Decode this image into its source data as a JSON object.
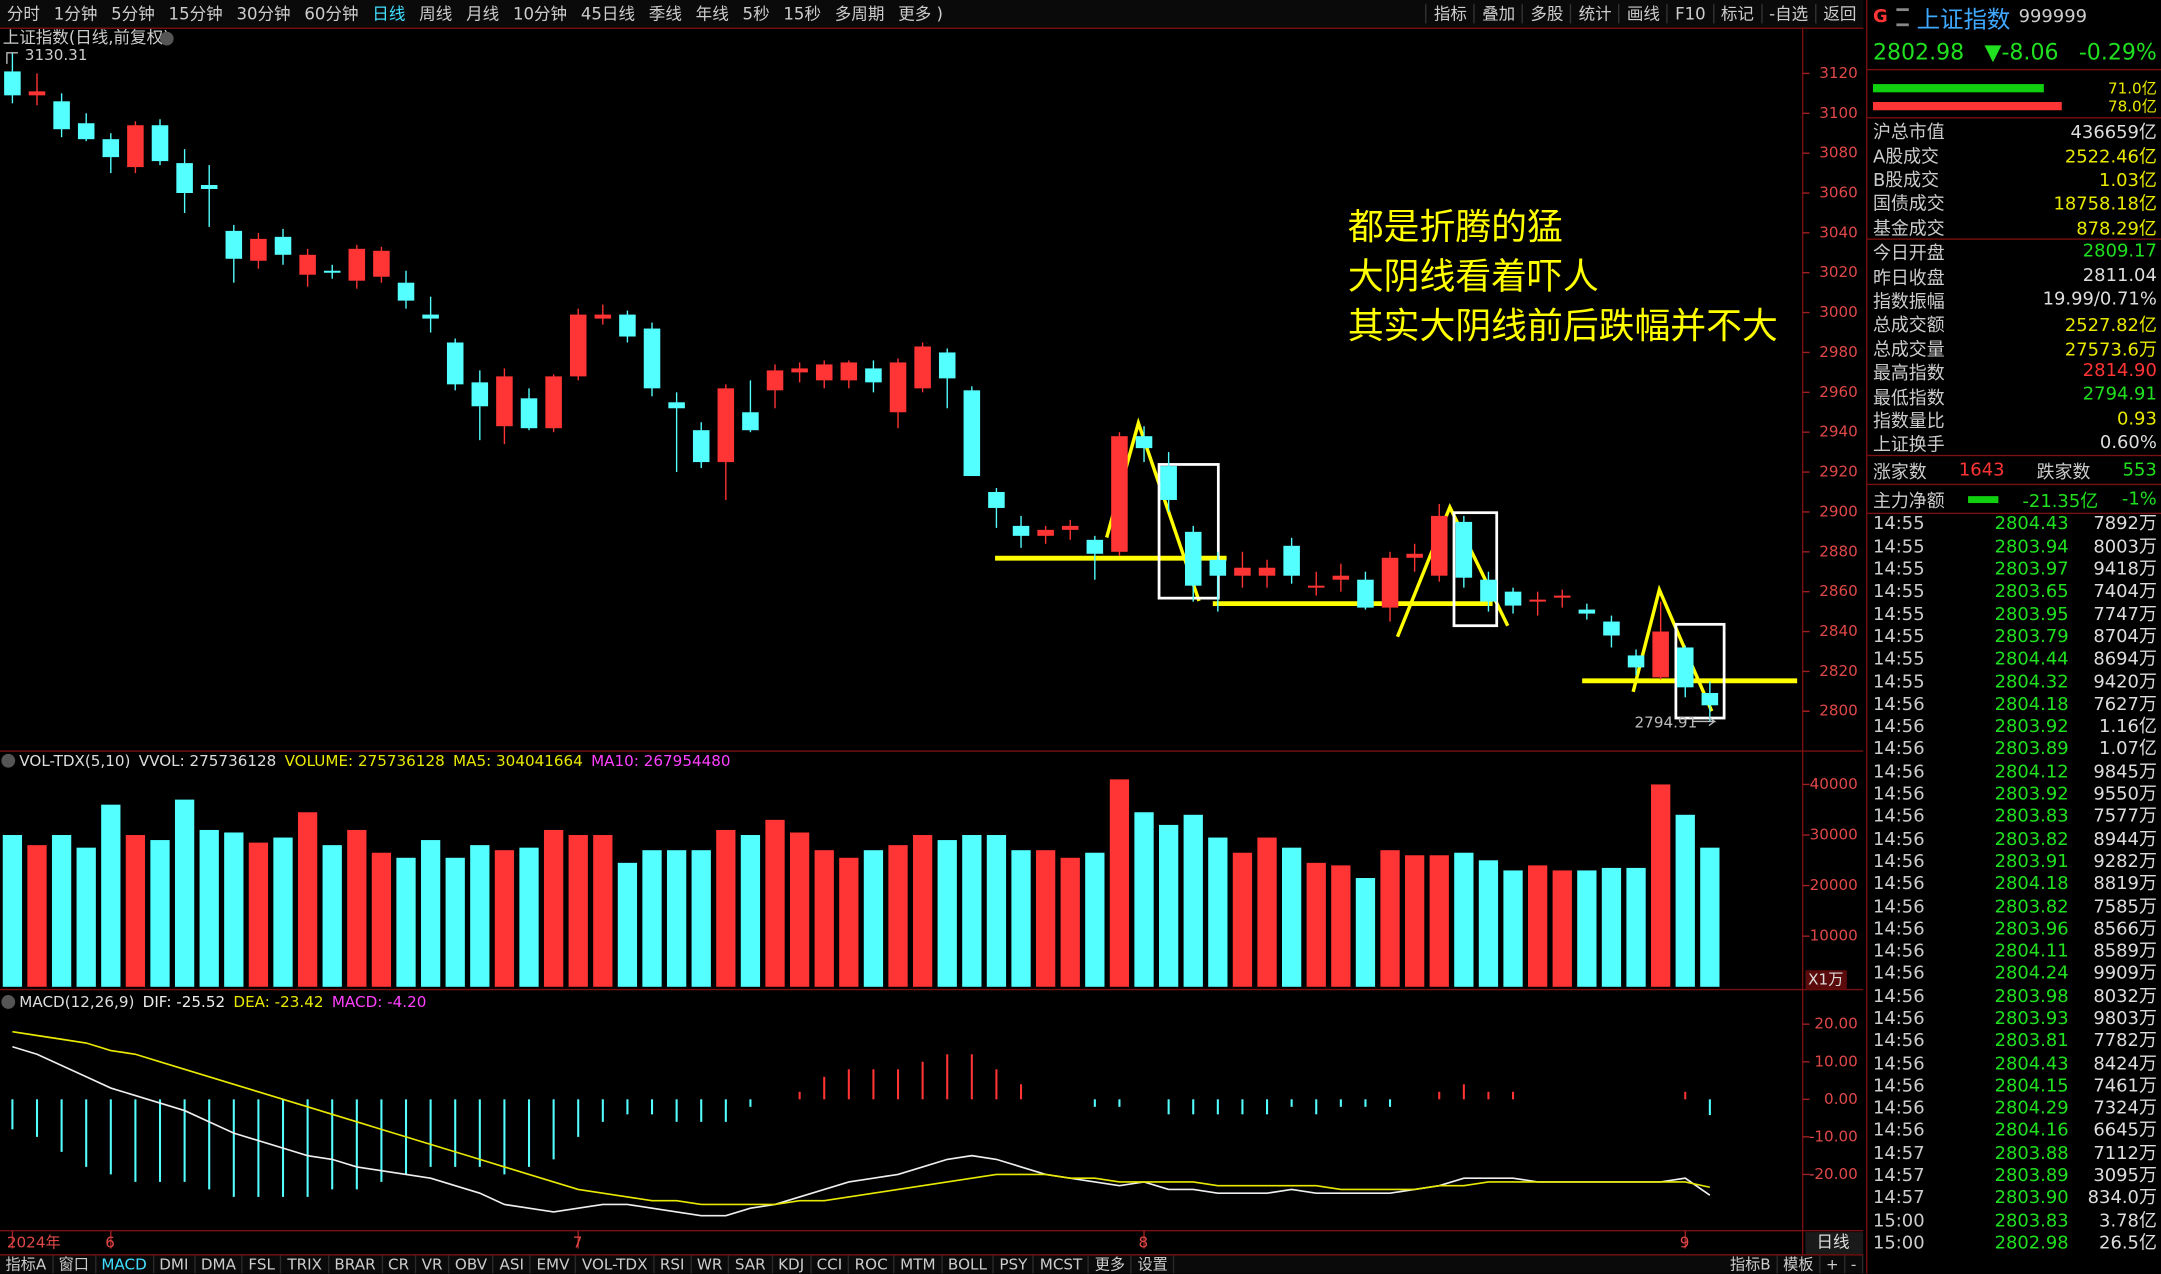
{
  "toolbar": {
    "periods": [
      "分时",
      "1分钟",
      "5分钟",
      "15分钟",
      "30分钟",
      "60分钟",
      "日线",
      "周线",
      "月线",
      "10分钟",
      "45日线",
      "季线",
      "年线",
      "5秒",
      "15秒",
      "多周期",
      "更多 )"
    ],
    "active_period": "日线",
    "tools": [
      "指标",
      "叠加",
      "多股",
      "统计",
      "画线",
      "F10",
      "标记",
      "-自选",
      "返回"
    ]
  },
  "chart": {
    "title": "上证指数(日线,前复权)",
    "high_label": 3130.31,
    "low_label": 2794.91,
    "period_label": "日线",
    "annotations": [
      "都是折腾的猛",
      "大阴线看着吓人",
      "其实大阴线前后跌幅并不大"
    ],
    "up_color": "#ff3434",
    "down_color": "#54ffff",
    "ylim": [
      2780,
      3143
    ],
    "yticks": [
      2800,
      2820,
      2840,
      2860,
      2880,
      2900,
      2920,
      2940,
      2960,
      2980,
      3000,
      3020,
      3040,
      3060,
      3080,
      3100,
      3120
    ],
    "x_labels": [
      {
        "candle": 0,
        "label": "2024年"
      },
      {
        "candle": 4,
        "label": "6"
      },
      {
        "candle": 23,
        "label": "7"
      },
      {
        "candle": 46,
        "label": "8"
      },
      {
        "candle": 68,
        "label": "9"
      }
    ],
    "candles": [
      [
        3121,
        3130.31,
        3105,
        3109
      ],
      [
        3109,
        3120,
        3104,
        3111
      ],
      [
        3106,
        3110,
        3088,
        3092
      ],
      [
        3095,
        3100,
        3086,
        3087
      ],
      [
        3087,
        3090,
        3070,
        3078
      ],
      [
        3073,
        3096,
        3070,
        3094
      ],
      [
        3094,
        3097,
        3074,
        3076
      ],
      [
        3075,
        3082,
        3050,
        3060
      ],
      [
        3064,
        3074,
        3043,
        3062
      ],
      [
        3041,
        3044,
        3015,
        3027
      ],
      [
        3026,
        3040,
        3022,
        3037
      ],
      [
        3038,
        3042,
        3024,
        3029
      ],
      [
        3019,
        3032,
        3013,
        3029
      ],
      [
        3021,
        3024,
        3017,
        3020
      ],
      [
        3016,
        3034,
        3012,
        3032
      ],
      [
        3018,
        3033,
        3015,
        3031
      ],
      [
        3015,
        3021,
        3002,
        3006
      ],
      [
        2999,
        3008,
        2990,
        2997
      ],
      [
        2985,
        2987,
        2961,
        2964
      ],
      [
        2965,
        2971,
        2936,
        2953
      ],
      [
        2943,
        2972,
        2934,
        2968
      ],
      [
        2957,
        2962,
        2941,
        2942
      ],
      [
        2942,
        2969,
        2940,
        2968
      ],
      [
        2968,
        3002,
        2966,
        2999
      ],
      [
        2997,
        3004,
        2994,
        2999
      ],
      [
        2999,
        3001,
        2985,
        2988
      ],
      [
        2992,
        2995,
        2958,
        2962
      ],
      [
        2955,
        2960,
        2920,
        2952
      ],
      [
        2941,
        2945,
        2922,
        2925
      ],
      [
        2925,
        2964,
        2906,
        2962
      ],
      [
        2950,
        2966,
        2940,
        2941
      ],
      [
        2961,
        2974,
        2952,
        2971
      ],
      [
        2970,
        2975,
        2965,
        2972
      ],
      [
        2966,
        2976,
        2962,
        2974
      ],
      [
        2966,
        2976,
        2962,
        2975
      ],
      [
        2972,
        2976,
        2960,
        2965
      ],
      [
        2950,
        2977,
        2942,
        2975
      ],
      [
        2962,
        2985,
        2960,
        2983
      ],
      [
        2980,
        2982,
        2952,
        2967
      ],
      [
        2961,
        2963,
        2918,
        2918
      ],
      [
        2910,
        2912,
        2892,
        2902
      ],
      [
        2893,
        2898,
        2882,
        2888
      ],
      [
        2888,
        2893,
        2884,
        2891
      ],
      [
        2891,
        2896,
        2886,
        2893
      ],
      [
        2886,
        2888,
        2866,
        2879
      ],
      [
        2880,
        2940,
        2878,
        2938
      ],
      [
        2938,
        2943,
        2925,
        2932
      ],
      [
        2923,
        2930,
        2900,
        2906
      ],
      [
        2890,
        2893,
        2855,
        2863
      ],
      [
        2876,
        2880,
        2850,
        2868
      ],
      [
        2868,
        2880,
        2862,
        2872
      ],
      [
        2868,
        2876,
        2862,
        2872
      ],
      [
        2883,
        2887,
        2864,
        2868
      ],
      [
        2862,
        2870,
        2858,
        2863
      ],
      [
        2866,
        2874,
        2860,
        2868
      ],
      [
        2866,
        2870,
        2851,
        2852
      ],
      [
        2852,
        2880,
        2845,
        2877
      ],
      [
        2877,
        2884,
        2870,
        2879
      ],
      [
        2868,
        2904,
        2865,
        2898
      ],
      [
        2895,
        2898,
        2862,
        2867
      ],
      [
        2866,
        2870,
        2850,
        2855
      ],
      [
        2860,
        2862,
        2849,
        2853
      ],
      [
        2855,
        2860,
        2848,
        2856
      ],
      [
        2857,
        2861,
        2852,
        2858
      ],
      [
        2851,
        2854,
        2846,
        2849
      ],
      [
        2845,
        2848,
        2832,
        2838
      ],
      [
        2828,
        2831,
        2818,
        2822
      ],
      [
        2817,
        2855,
        2816,
        2840
      ],
      [
        2832,
        2833,
        2807,
        2812
      ],
      [
        2809.17,
        2814.9,
        2794.91,
        2802.98
      ]
    ]
  },
  "volume": {
    "name": "VOL-TDX(5,10)",
    "fields": [
      {
        "text": "VVOL: 275736128",
        "color": "#dddddd"
      },
      {
        "text": "VOLUME: 275736128",
        "color": "#e8e800"
      },
      {
        "text": "MA5: 304041664",
        "color": "#e8e800"
      },
      {
        "text": "MA10: 267954480",
        "color": "#ff40ff"
      }
    ],
    "unit": "X1万",
    "ylim": [
      0,
      42500
    ],
    "yticks": [
      10000,
      20000,
      30000,
      40000
    ],
    "values": [
      30000,
      28000,
      30000,
      27500,
      36000,
      30000,
      29000,
      37000,
      31000,
      30500,
      28500,
      29500,
      34500,
      28000,
      31000,
      26500,
      25500,
      29000,
      25500,
      28000,
      27000,
      27500,
      31000,
      30000,
      30000,
      24500,
      27000,
      27000,
      27000,
      31000,
      30000,
      33000,
      30500,
      27000,
      25500,
      27000,
      28000,
      30000,
      29000,
      30000,
      30000,
      27000,
      27000,
      25500,
      26500,
      41000,
      34500,
      32000,
      34000,
      29500,
      26500,
      29500,
      27500,
      24500,
      24000,
      21500,
      27000,
      26000,
      26000,
      26500,
      25000,
      23000,
      24000,
      23000,
      23000,
      23500,
      23500,
      40000,
      34000,
      27500
    ]
  },
  "macd": {
    "name": "MACD(12,26,9)",
    "fields": [
      {
        "text": "DIF: -25.52",
        "color": "#eeeeee"
      },
      {
        "text": "DEA: -23.42",
        "color": "#e8e800"
      },
      {
        "text": "MACD: -4.20",
        "color": "#ff40ff"
      }
    ],
    "ylim": [
      -35,
      23
    ],
    "yticks": [
      {
        "value": 20,
        "label": "20.00"
      },
      {
        "value": 10,
        "label": "10.00"
      },
      {
        "value": 0,
        "label": "0.00"
      },
      {
        "value": -10,
        "label": "-10.00"
      },
      {
        "value": -20,
        "label": "-20.00"
      }
    ],
    "dif_color": "#eeeeee",
    "dea_color": "#e8e800",
    "dif": [
      14,
      12,
      9,
      6,
      3,
      1,
      -1,
      -3,
      -6,
      -9,
      -11,
      -13,
      -15,
      -16,
      -18,
      -19,
      -20,
      -21,
      -23,
      -25,
      -28,
      -29,
      -30,
      -29,
      -28,
      -28,
      -29,
      -30,
      -31,
      -31,
      -29,
      -28,
      -26,
      -24,
      -22,
      -21,
      -20,
      -18,
      -16,
      -15,
      -16,
      -18,
      -20,
      -21,
      -22,
      -23,
      -22,
      -24,
      -24,
      -25,
      -25,
      -25,
      -24,
      -25,
      -25,
      -25,
      -25,
      -24,
      -23,
      -21,
      -21,
      -21,
      -22,
      -22,
      -22,
      -22,
      -22,
      -22,
      -21,
      -25.52
    ],
    "dea": [
      18,
      17,
      16,
      15,
      13,
      12,
      10,
      8,
      6,
      4,
      2,
      0,
      -2,
      -4,
      -6,
      -8,
      -10,
      -12,
      -14,
      -16,
      -18,
      -20,
      -22,
      -24,
      -25,
      -26,
      -27,
      -27,
      -28,
      -28,
      -28,
      -28,
      -27,
      -27,
      -26,
      -25,
      -24,
      -23,
      -22,
      -21,
      -20,
      -20,
      -20,
      -21,
      -21,
      -22,
      -22,
      -22,
      -22,
      -23,
      -23,
      -23,
      -23,
      -23,
      -24,
      -24,
      -24,
      -24,
      -23,
      -23,
      -22,
      -22,
      -22,
      -22,
      -22,
      -22,
      -22,
      -22,
      -22,
      -23.42
    ],
    "hist": [
      -8,
      -10,
      -14,
      -18,
      -20,
      -22,
      -22,
      -22,
      -24,
      -26,
      -26,
      -26,
      -26,
      -24,
      -24,
      -22,
      -20,
      -18,
      -18,
      -18,
      -20,
      -18,
      -16,
      -10,
      -6,
      -4,
      -4,
      -6,
      -6,
      -6,
      -2,
      0,
      2,
      6,
      8,
      8,
      8,
      10,
      12,
      12,
      8,
      4,
      0,
      0,
      -2,
      -2,
      0,
      -4,
      -4,
      -4,
      -4,
      -4,
      -2,
      -4,
      -2,
      -2,
      -2,
      0,
      2,
      4,
      2,
      2,
      0,
      0,
      0,
      0,
      0,
      0,
      2,
      -4.2
    ]
  },
  "side": {
    "badge": "G",
    "name": "上证指数",
    "code": "999999",
    "price": "2802.98",
    "change": "▼-8.06",
    "pct": "-0.29%",
    "bars": [
      {
        "value": 71.0,
        "label": "71.0亿",
        "color": "#10d010"
      },
      {
        "value": 78.0,
        "label": "78.0亿",
        "color": "#ff3434"
      }
    ],
    "stats": [
      {
        "label": "沪总市值",
        "value": "436659亿",
        "color": "#dddddd"
      },
      {
        "label": "A股成交",
        "value": "2522.46亿",
        "color": "#e8e800"
      },
      {
        "label": "B股成交",
        "value": "1.03亿",
        "color": "#e8e800"
      },
      {
        "label": "国债成交",
        "value": "18758.18亿",
        "color": "#e8e800"
      },
      {
        "label": "基金成交",
        "value": "878.29亿",
        "color": "#e8e800"
      },
      {
        "label": "今日开盘",
        "value": "2809.17",
        "color": "#20e020"
      },
      {
        "label": "昨日收盘",
        "value": "2811.04",
        "color": "#dddddd"
      },
      {
        "label": "指数振幅",
        "value": "19.99/0.71%",
        "color": "#dddddd"
      },
      {
        "label": "总成交额",
        "value": "2527.82亿",
        "color": "#e8e800"
      },
      {
        "label": "总成交量",
        "value": "27573.6万",
        "color": "#e8e800"
      },
      {
        "label": "最高指数",
        "value": "2814.90",
        "color": "#ff3434"
      },
      {
        "label": "最低指数",
        "value": "2794.91",
        "color": "#20e020"
      },
      {
        "label": "指数量比",
        "value": "0.93",
        "color": "#e8e800"
      },
      {
        "label": "上证换手",
        "value": "0.60%",
        "color": "#dddddd"
      }
    ],
    "breadth": {
      "up_label": "涨家数",
      "up": "1643",
      "down_label": "跌家数",
      "down": "553"
    },
    "flow": {
      "label": "主力净额",
      "value": "-21.35亿",
      "pct": "-1%"
    },
    "ticks": [
      [
        "14:55",
        "2804.43",
        "7892万"
      ],
      [
        "14:55",
        "2803.94",
        "8003万"
      ],
      [
        "14:55",
        "2803.97",
        "9418万"
      ],
      [
        "14:55",
        "2803.65",
        "7404万"
      ],
      [
        "14:55",
        "2803.95",
        "7747万"
      ],
      [
        "14:55",
        "2803.79",
        "8704万"
      ],
      [
        "14:55",
        "2804.44",
        "8694万"
      ],
      [
        "14:55",
        "2804.32",
        "9420万"
      ],
      [
        "14:56",
        "2804.18",
        "7627万"
      ],
      [
        "14:56",
        "2803.92",
        "1.16亿"
      ],
      [
        "14:56",
        "2803.89",
        "1.07亿"
      ],
      [
        "14:56",
        "2804.12",
        "9845万"
      ],
      [
        "14:56",
        "2803.92",
        "9550万"
      ],
      [
        "14:56",
        "2803.83",
        "7577万"
      ],
      [
        "14:56",
        "2803.82",
        "8944万"
      ],
      [
        "14:56",
        "2803.91",
        "9282万"
      ],
      [
        "14:56",
        "2804.18",
        "8819万"
      ],
      [
        "14:56",
        "2803.82",
        "7585万"
      ],
      [
        "14:56",
        "2803.96",
        "8566万"
      ],
      [
        "14:56",
        "2804.11",
        "8589万"
      ],
      [
        "14:56",
        "2804.24",
        "9909万"
      ],
      [
        "14:56",
        "2803.98",
        "8032万"
      ],
      [
        "14:56",
        "2803.93",
        "9803万"
      ],
      [
        "14:56",
        "2803.81",
        "7782万"
      ],
      [
        "14:56",
        "2804.43",
        "8424万"
      ],
      [
        "14:56",
        "2804.15",
        "7461万"
      ],
      [
        "14:56",
        "2804.29",
        "7324万"
      ],
      [
        "14:56",
        "2804.16",
        "6645万"
      ],
      [
        "14:57",
        "2803.88",
        "7112万"
      ],
      [
        "14:57",
        "2803.89",
        "3095万"
      ],
      [
        "14:57",
        "2803.90",
        "834.0万"
      ],
      [
        "15:00",
        "2803.83",
        "3.78亿"
      ],
      [
        "15:00",
        "2802.98",
        "26.5亿"
      ]
    ]
  },
  "tabs": {
    "left": [
      "指标A",
      "窗口",
      "MACD",
      "DMI",
      "DMA",
      "FSL",
      "TRIX",
      "BRAR",
      "CR",
      "VR",
      "OBV",
      "ASI",
      "EMV",
      "VOL-TDX",
      "RSI",
      "WR",
      "SAR",
      "KDJ",
      "CCI",
      "ROC",
      "MTM",
      "BOLL",
      "PSY",
      "MCST",
      "更多",
      "设置"
    ],
    "active": "MACD",
    "right": [
      "指标B",
      "模板",
      "+",
      "-"
    ]
  }
}
